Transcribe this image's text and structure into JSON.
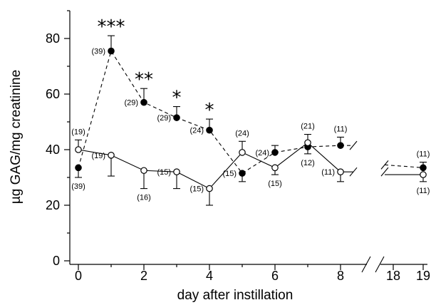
{
  "chart_data": {
    "type": "line",
    "xlabel": "day after instillation",
    "ylabel": "µg GAG/mg creatinine",
    "ylim": [
      0,
      90
    ],
    "yticks": [
      0,
      20,
      40,
      60,
      80
    ],
    "xticks": [
      0,
      2,
      4,
      6,
      8,
      18,
      19
    ],
    "xminor": [
      1,
      3,
      5,
      7
    ],
    "series": [
      {
        "style": "filled-circle-dashed",
        "points": [
          {
            "x": 0,
            "y": 33.5,
            "err": 3.5,
            "err_dir": "down",
            "n": "(39)",
            "n_pos": "below"
          },
          {
            "x": 1,
            "y": 75.5,
            "err": 5.5,
            "err_dir": "up",
            "n": "(39)",
            "n_pos": "left",
            "sig": "***"
          },
          {
            "x": 2,
            "y": 57,
            "err": 5,
            "err_dir": "up",
            "n": "(29)",
            "n_pos": "left",
            "sig": "**"
          },
          {
            "x": 3,
            "y": 51.5,
            "err": 4,
            "err_dir": "up",
            "n": "(29)",
            "n_pos": "left",
            "sig": "*"
          },
          {
            "x": 4,
            "y": 47,
            "err": 4,
            "err_dir": "up",
            "n": "(24)",
            "n_pos": "left",
            "sig": "*"
          },
          {
            "x": 5,
            "y": 31.5,
            "err": 3,
            "err_dir": "down",
            "n": "(15)",
            "n_pos": "left"
          },
          {
            "x": 6,
            "y": 39,
            "err": 2.5,
            "err_dir": "up",
            "n": "(24)",
            "n_pos": "left"
          },
          {
            "x": 7,
            "y": 41,
            "err": 2.5,
            "err_dir": "down",
            "n": "(12)",
            "n_pos": "below"
          },
          {
            "x": 8,
            "y": 41.5,
            "err": 3,
            "err_dir": "up",
            "n": "(11)",
            "n_pos": "above"
          },
          {
            "x": 19,
            "y": 33.5,
            "err": 2,
            "err_dir": "up",
            "n": "(11)",
            "n_pos": "above"
          }
        ]
      },
      {
        "style": "open-circle-solid",
        "points": [
          {
            "x": 0,
            "y": 40,
            "err": 3.5,
            "err_dir": "up",
            "n": "(19)",
            "n_pos": "above"
          },
          {
            "x": 1,
            "y": 38,
            "err": 7.5,
            "err_dir": "down",
            "n": "(19)",
            "n_pos": "left"
          },
          {
            "x": 2,
            "y": 32.5,
            "err": 6.5,
            "err_dir": "down",
            "n": "(16)",
            "n_pos": "below"
          },
          {
            "x": 3,
            "y": 32,
            "err": 6,
            "err_dir": "down",
            "n": "(15)",
            "n_pos": "left"
          },
          {
            "x": 4,
            "y": 26,
            "err": 6,
            "err_dir": "down",
            "n": "(15)",
            "n_pos": "left"
          },
          {
            "x": 5,
            "y": 39,
            "err": 4,
            "err_dir": "up",
            "n": "(24)",
            "n_pos": "above"
          },
          {
            "x": 6,
            "y": 33.5,
            "err": 2.5,
            "err_dir": "down",
            "n": "(15)",
            "n_pos": "below"
          },
          {
            "x": 7,
            "y": 42.5,
            "err": 3,
            "err_dir": "up",
            "n": "(21)",
            "n_pos": "above"
          },
          {
            "x": 8,
            "y": 32,
            "err": 3.5,
            "err_dir": "down",
            "n": "(11)",
            "n_pos": "left"
          },
          {
            "x": 19,
            "y": 31,
            "err": 2.5,
            "err_dir": "down",
            "n": "(11)",
            "n_pos": "below"
          }
        ]
      }
    ]
  }
}
